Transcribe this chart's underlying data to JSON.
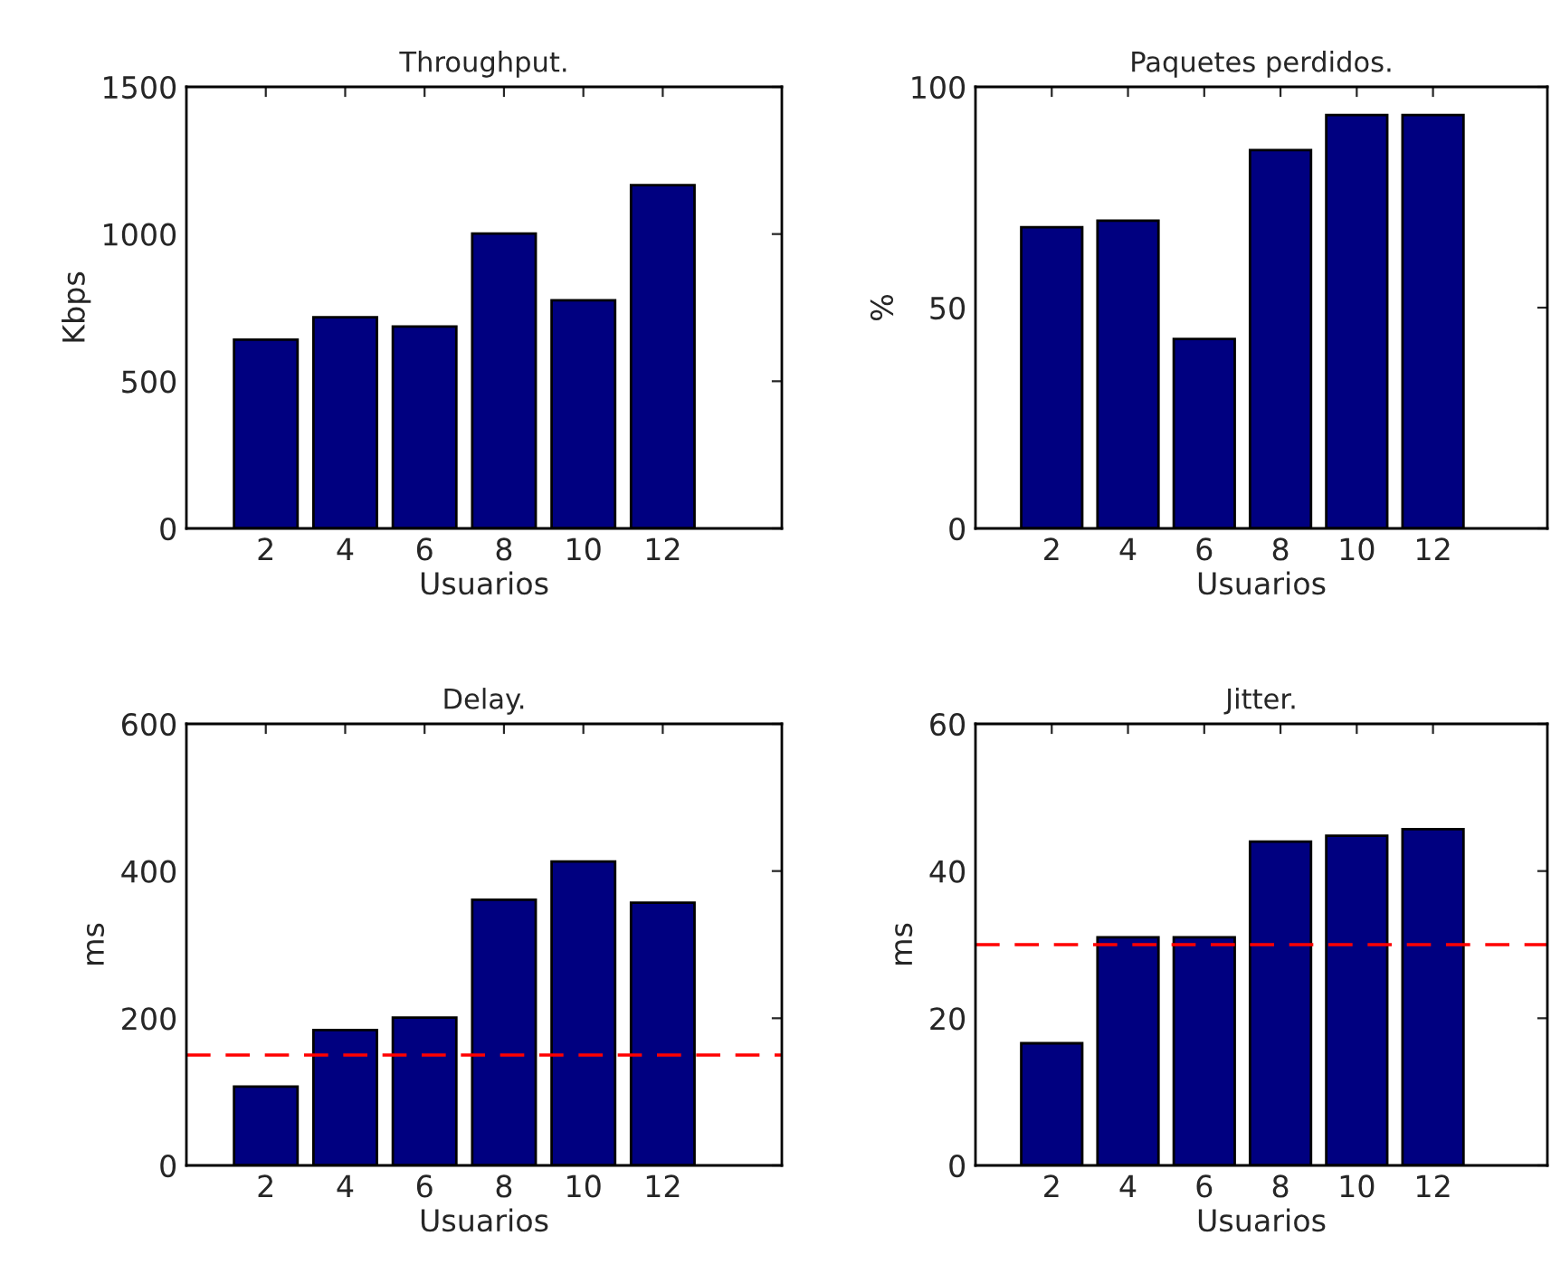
{
  "chart_data": [
    {
      "type": "bar",
      "title": "Throughput.",
      "xlabel": "Usuarios",
      "ylabel": "Kbps",
      "x": [
        2,
        4,
        6,
        8,
        10,
        12
      ],
      "values": [
        641,
        717,
        686,
        1002,
        775,
        1166
      ],
      "color": "#000080",
      "xlim": [
        0,
        15
      ],
      "xticks": [
        2,
        4,
        6,
        8,
        10,
        12
      ],
      "ylim": [
        0,
        1500
      ],
      "yticks": [
        0,
        500,
        1000,
        1500
      ],
      "grid": false,
      "legend": false
    },
    {
      "type": "bar",
      "title": "Paquetes perdidos.",
      "xlabel": "Usuarios",
      "ylabel": "%",
      "x": [
        2,
        4,
        6,
        8,
        10,
        12
      ],
      "values": [
        68.2,
        69.7,
        42.9,
        85.7,
        93.6,
        93.6
      ],
      "color": "#000080",
      "xlim": [
        0,
        15
      ],
      "xticks": [
        2,
        4,
        6,
        8,
        10,
        12
      ],
      "ylim": [
        0,
        100
      ],
      "yticks": [
        0,
        50,
        100
      ],
      "grid": false,
      "legend": false
    },
    {
      "type": "bar",
      "title": "Delay.",
      "xlabel": "Usuarios",
      "ylabel": "ms",
      "x": [
        2,
        4,
        6,
        8,
        10,
        12
      ],
      "values": [
        107,
        184,
        201,
        361,
        413,
        357
      ],
      "color": "#000080",
      "xlim": [
        0,
        15
      ],
      "xticks": [
        2,
        4,
        6,
        8,
        10,
        12
      ],
      "ylim": [
        0,
        600
      ],
      "yticks": [
        0,
        200,
        400,
        600
      ],
      "grid": false,
      "legend": false,
      "ref_lines": [
        {
          "axis": "y",
          "value": 150,
          "color": "#ff0000",
          "line_style": "dashed"
        }
      ]
    },
    {
      "type": "bar",
      "title": "Jitter.",
      "xlabel": "Usuarios",
      "ylabel": "ms",
      "x": [
        2,
        4,
        6,
        8,
        10,
        12
      ],
      "values": [
        16.6,
        31,
        31,
        44,
        44.8,
        45.7
      ],
      "color": "#000080",
      "xlim": [
        0,
        15
      ],
      "xticks": [
        2,
        4,
        6,
        8,
        10,
        12
      ],
      "ylim": [
        0,
        60
      ],
      "yticks": [
        0,
        20,
        40,
        60
      ],
      "grid": false,
      "legend": false,
      "ref_lines": [
        {
          "axis": "y",
          "value": 30,
          "color": "#ff0000",
          "line_style": "dashed"
        }
      ]
    }
  ]
}
